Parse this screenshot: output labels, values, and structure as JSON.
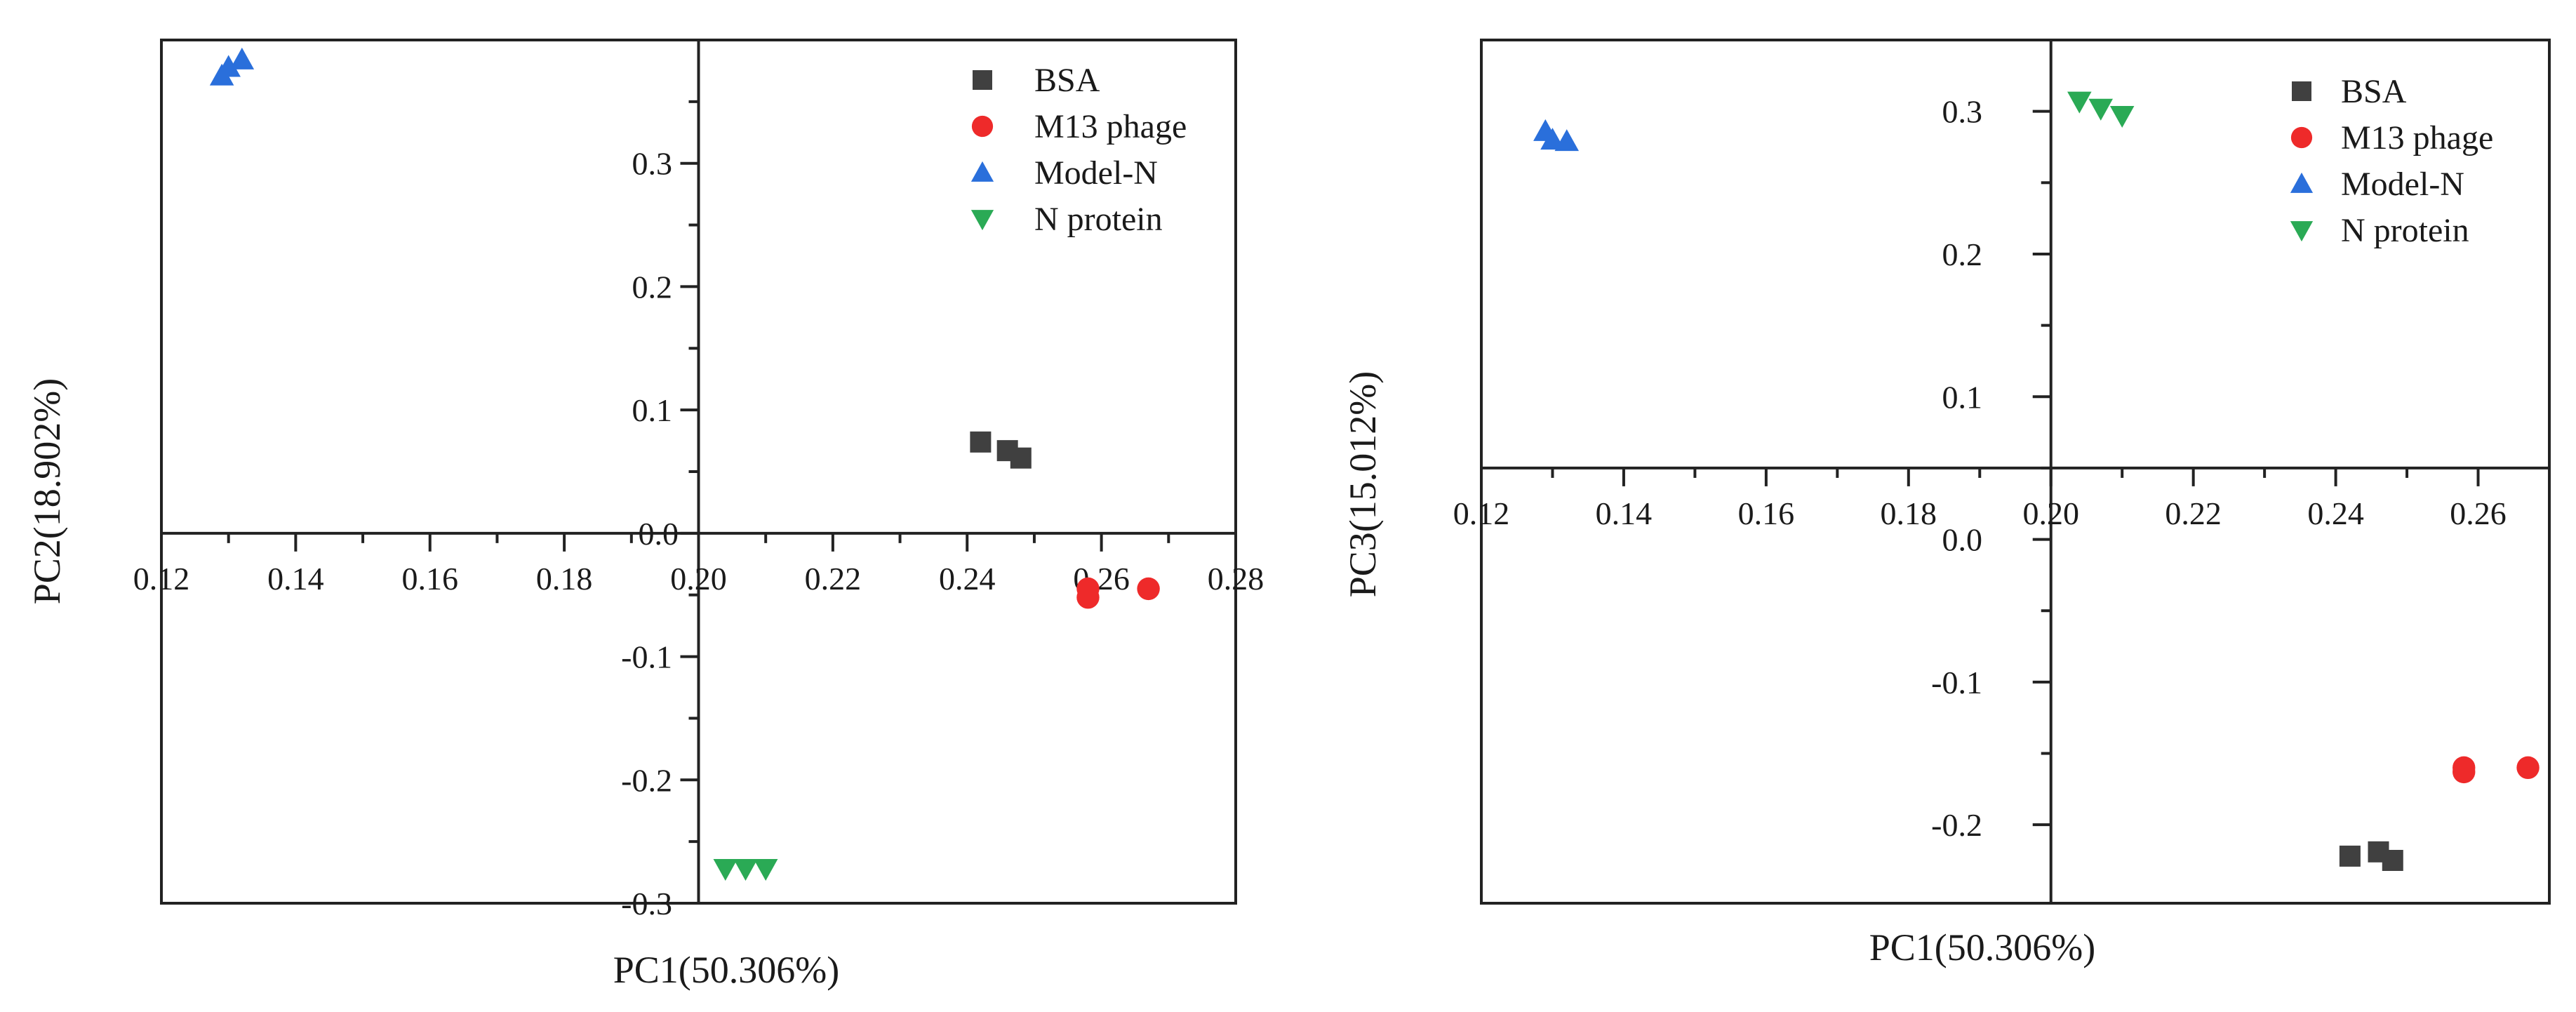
{
  "chart_data": [
    {
      "type": "scatter",
      "title": "",
      "xlabel": "PC1(50.306%)",
      "ylabel": "PC2(18.902%)",
      "xlim": [
        0.12,
        0.28
      ],
      "ylim": [
        -0.3,
        0.4
      ],
      "xticks": [
        "0.12",
        "0.14",
        "0.16",
        "0.18",
        "0.20",
        "0.22",
        "0.24",
        "0.26",
        "0.28"
      ],
      "yticks": [
        "-0.3",
        "-0.2",
        "-0.1",
        "0.0",
        "0.1",
        "0.2",
        "0.3"
      ],
      "axes_cross_at": [
        0.2,
        0.0
      ],
      "grid": false,
      "legend_position": "top-right",
      "series": [
        {
          "name": "BSA",
          "marker": "square",
          "color": "#404040",
          "x": [
            0.242,
            0.246,
            0.248
          ],
          "y": [
            0.074,
            0.067,
            0.061
          ]
        },
        {
          "name": "M13 phage",
          "marker": "circle",
          "color": "#ee2a2a",
          "x": [
            0.258,
            0.258,
            0.267
          ],
          "y": [
            -0.045,
            -0.052,
            -0.045
          ]
        },
        {
          "name": "Model-N",
          "marker": "triangle-up",
          "color": "#2a6fdb",
          "x": [
            0.129,
            0.13,
            0.132
          ],
          "y": [
            0.371,
            0.378,
            0.384
          ]
        },
        {
          "name": "N protein",
          "marker": "triangle-down",
          "color": "#2aaa55",
          "x": [
            0.204,
            0.207,
            0.21
          ],
          "y": [
            -0.272,
            -0.272,
            -0.272
          ]
        }
      ]
    },
    {
      "type": "scatter",
      "title": "",
      "xlabel": "PC1(50.306%)",
      "ylabel": "PC3(15.012%)",
      "xlim": [
        0.12,
        0.27
      ],
      "ylim": [
        -0.255,
        0.35
      ],
      "xticks": [
        "0.12",
        "0.14",
        "0.16",
        "0.18",
        "0.20",
        "0.22",
        "0.24",
        "0.26"
      ],
      "yticks": [
        "-0.2",
        "-0.1",
        "0.0",
        "0.1",
        "0.2",
        "0.3"
      ],
      "axes_cross_at": [
        0.2,
        0.05
      ],
      "grid": false,
      "legend_position": "top-right",
      "series": [
        {
          "name": "BSA",
          "marker": "square",
          "color": "#404040",
          "x": [
            0.242,
            0.246,
            0.248
          ],
          "y": [
            -0.222,
            -0.219,
            -0.225
          ]
        },
        {
          "name": "M13 phage",
          "marker": "circle",
          "color": "#ee2a2a",
          "x": [
            0.258,
            0.258,
            0.267
          ],
          "y": [
            -0.16,
            -0.163,
            -0.16
          ]
        },
        {
          "name": "Model-N",
          "marker": "triangle-up",
          "color": "#2a6fdb",
          "x": [
            0.129,
            0.13,
            0.132
          ],
          "y": [
            0.286,
            0.28,
            0.279
          ]
        },
        {
          "name": "N protein",
          "marker": "triangle-down",
          "color": "#2aaa55",
          "x": [
            0.204,
            0.207,
            0.21
          ],
          "y": [
            0.307,
            0.302,
            0.297
          ]
        }
      ]
    }
  ]
}
